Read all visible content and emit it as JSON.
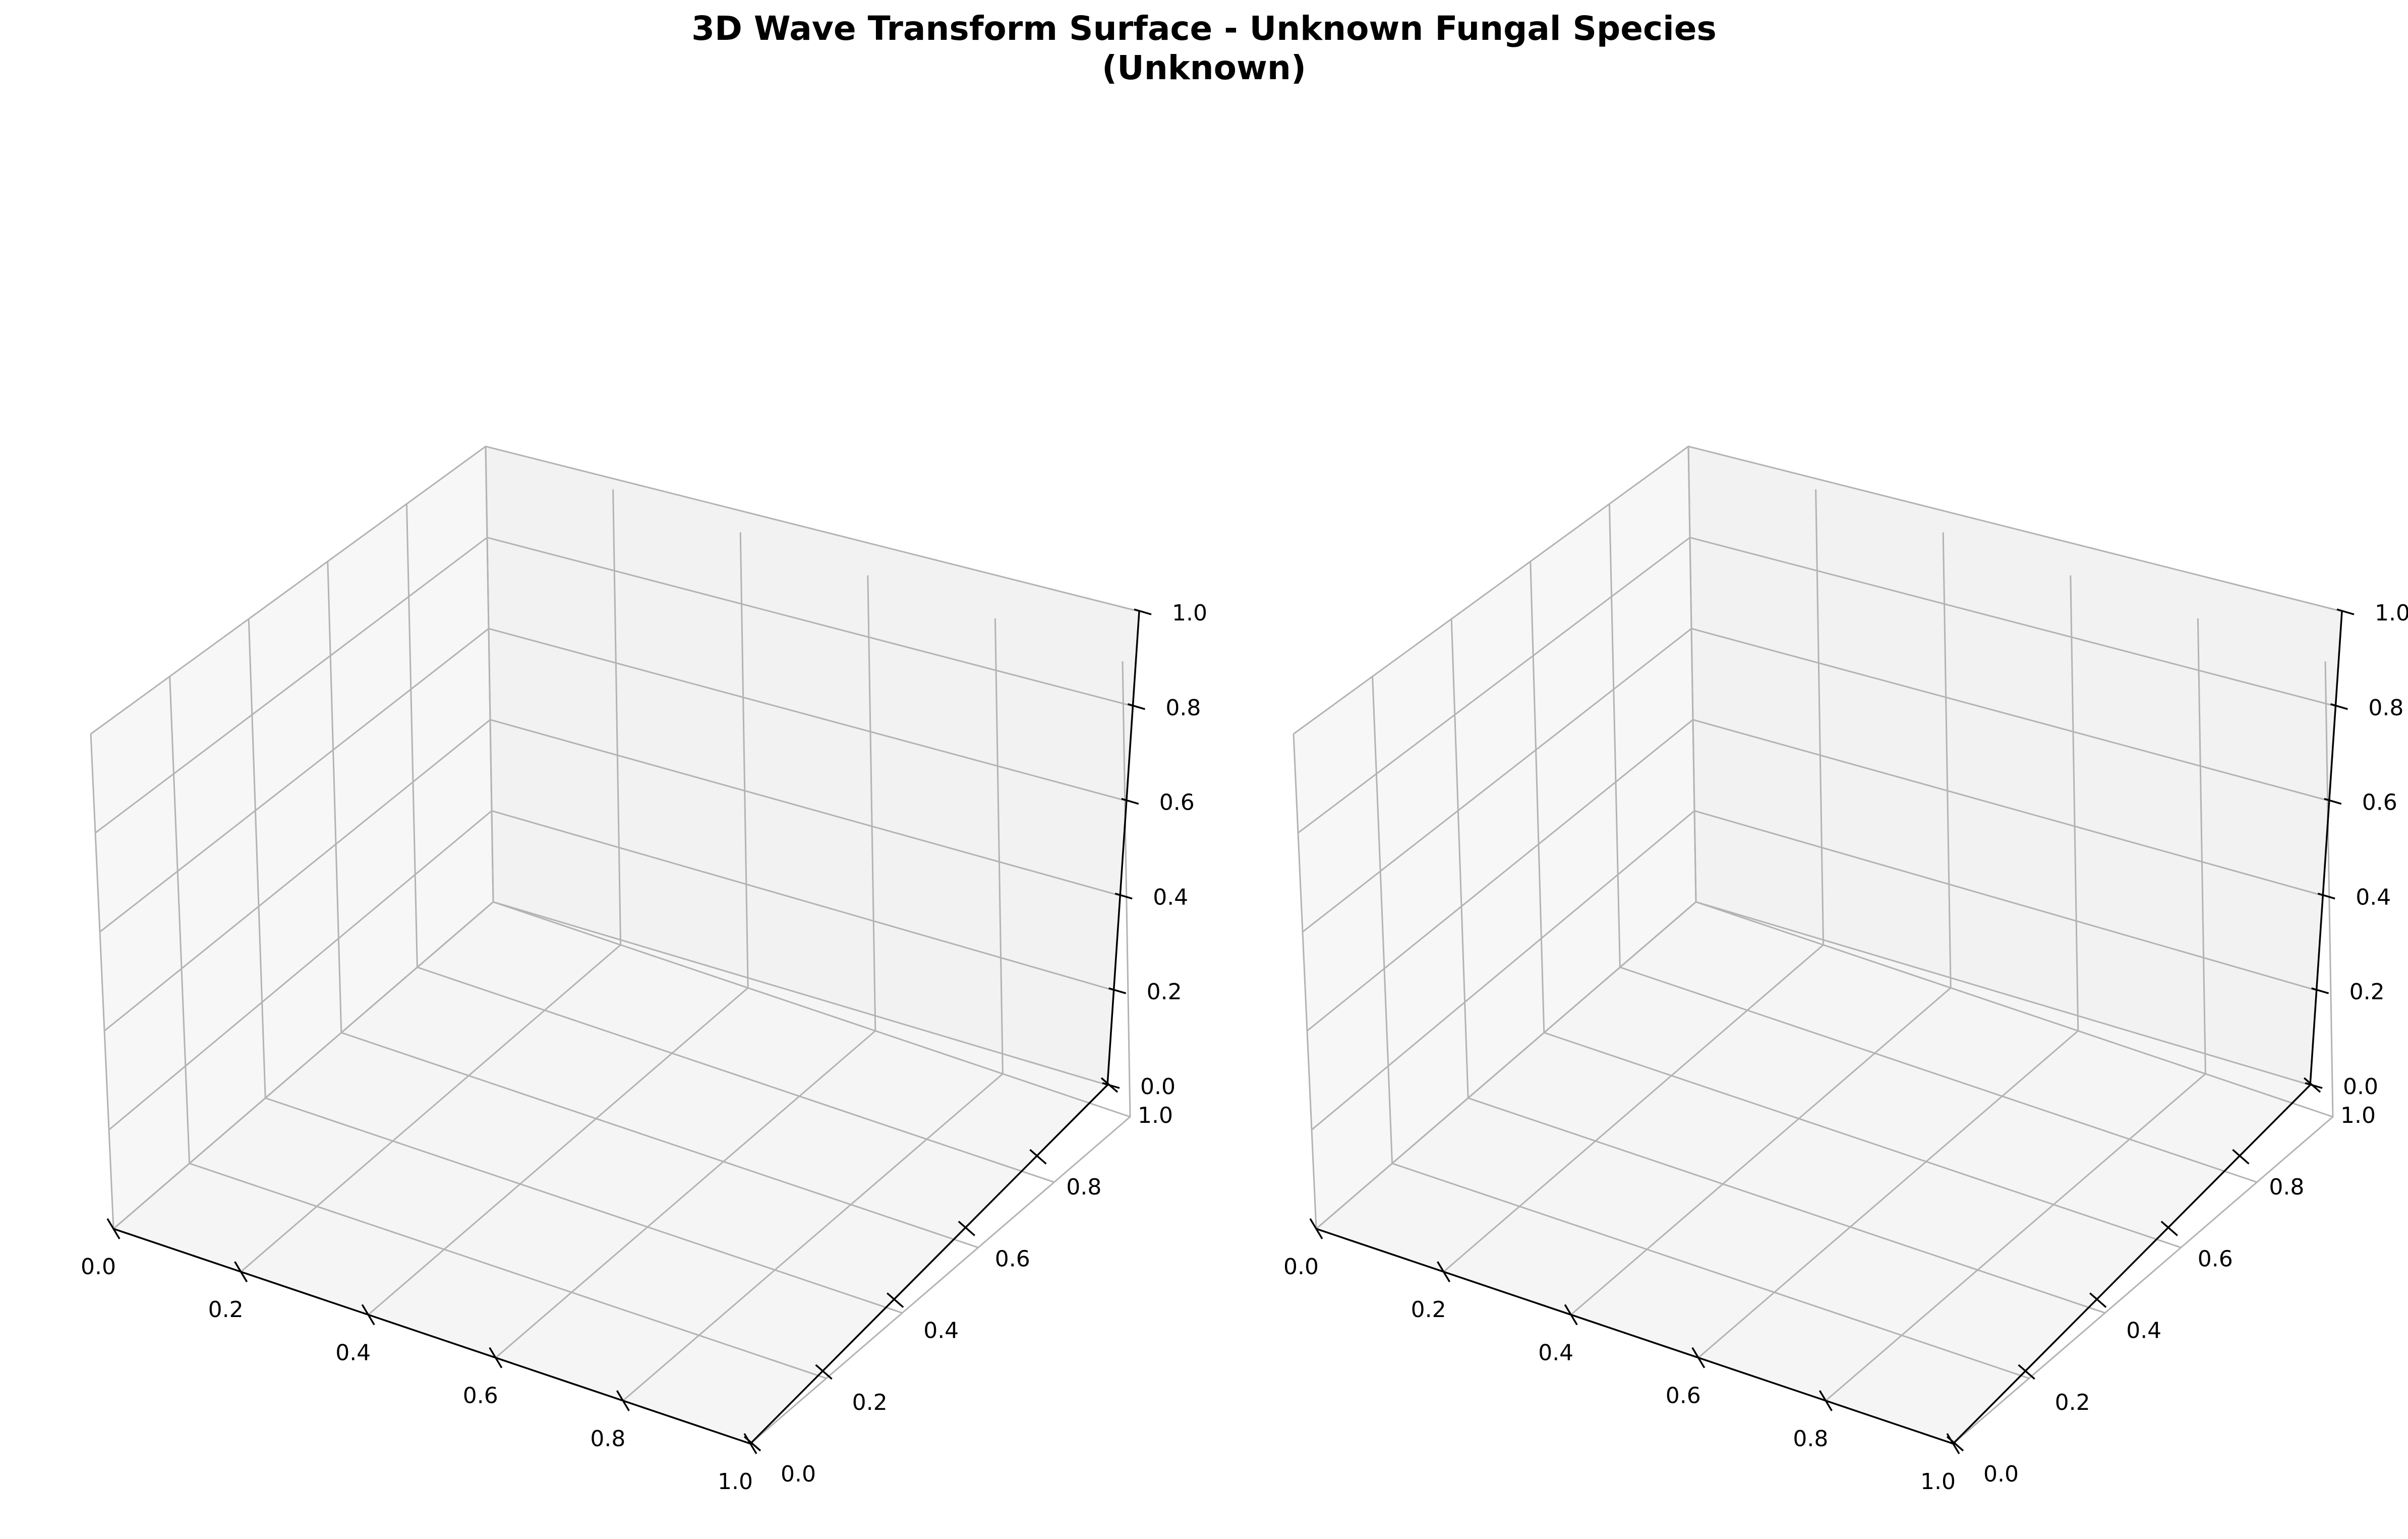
{
  "figure": {
    "title_line1": "3D Wave Transform Surface - Unknown Fungal Species",
    "title_line2": "(Unknown)"
  },
  "chart_data": [
    {
      "type": "surface3d",
      "title": "",
      "xlabel": "",
      "ylabel": "",
      "zlabel": "",
      "xlim": [
        0.0,
        1.0
      ],
      "ylim": [
        0.0,
        1.0
      ],
      "zlim": [
        0.0,
        1.0
      ],
      "x_ticks": [
        "0.0",
        "0.2",
        "0.4",
        "0.6",
        "0.8",
        "1.0"
      ],
      "y_ticks": [
        "0.0",
        "0.2",
        "0.4",
        "0.6",
        "0.8",
        "1.0"
      ],
      "z_ticks": [
        "0.0",
        "0.2",
        "0.4",
        "0.6",
        "0.8",
        "1.0"
      ],
      "grid": true,
      "series": []
    },
    {
      "type": "surface3d",
      "title": "",
      "xlabel": "",
      "ylabel": "",
      "zlabel": "",
      "xlim": [
        0.0,
        1.0
      ],
      "ylim": [
        0.0,
        1.0
      ],
      "zlim": [
        0.0,
        1.0
      ],
      "x_ticks": [
        "0.0",
        "0.2",
        "0.4",
        "0.6",
        "0.8",
        "1.0"
      ],
      "y_ticks": [
        "0.0",
        "0.2",
        "0.4",
        "0.6",
        "0.8",
        "1.0"
      ],
      "z_ticks": [
        "0.0",
        "0.2",
        "0.4",
        "0.6",
        "0.8",
        "1.0"
      ],
      "grid": true,
      "series": []
    }
  ],
  "colors": {
    "pane_floor": "#f5f5f5",
    "pane_left": "#f7f7f7",
    "pane_back": "#f2f2f2",
    "grid": "#b3b3b3",
    "axis": "#000000"
  }
}
